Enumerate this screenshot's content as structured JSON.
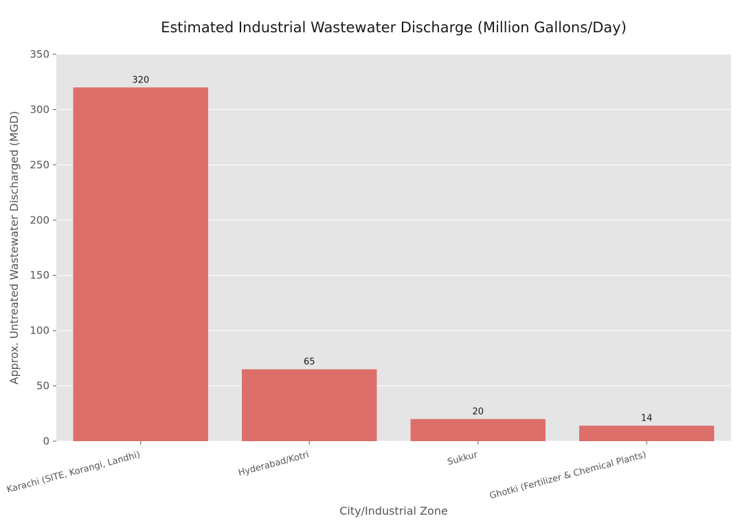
{
  "chart_data": {
    "type": "bar",
    "title": "Estimated Industrial Wastewater Discharge (Million Gallons/Day)",
    "xlabel": "City/Industrial Zone",
    "ylabel": "Approx. Untreated Wastewater Discharged (MGD)",
    "categories": [
      "Karachi (SITE, Korangi, Landhi)",
      "Hyderabad/Kotri",
      "Sukkur",
      "Ghotki (Fertilizer & Chemical Plants)"
    ],
    "values": [
      320,
      65,
      20,
      14
    ],
    "data_labels": [
      "320",
      "65",
      "20",
      "14"
    ],
    "ylim": [
      0,
      350
    ],
    "yticks": [
      0,
      50,
      100,
      150,
      200,
      250,
      300,
      350
    ],
    "ytick_labels": [
      "0",
      "50",
      "100",
      "150",
      "200",
      "250",
      "300",
      "350"
    ],
    "grid": true,
    "bar_color": "#dd6e6a",
    "background_color": "#e5e5e5",
    "grid_color": "#ffffff"
  }
}
